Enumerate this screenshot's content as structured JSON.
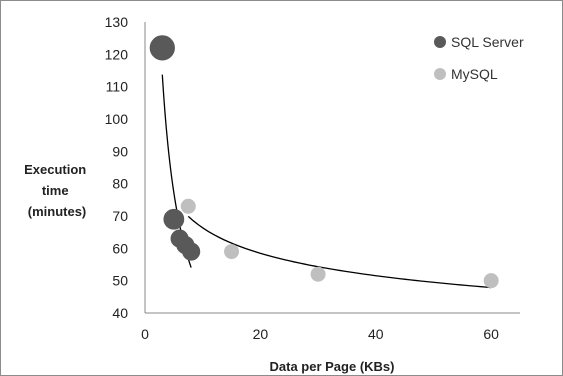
{
  "chart_data": {
    "type": "scatter",
    "title": "",
    "xlabel": "Data per Page (KBs)",
    "ylabel": [
      "Execution",
      "time",
      "(minutes)"
    ],
    "xlim": [
      0,
      65
    ],
    "ylim": [
      40,
      130
    ],
    "xticks": [
      0,
      20,
      40,
      60
    ],
    "yticks": [
      40,
      50,
      60,
      70,
      80,
      90,
      100,
      110,
      120,
      130
    ],
    "grid": false,
    "legend_position": "top-right",
    "series": [
      {
        "name": "SQL Server",
        "color": "#595959",
        "points": [
          {
            "x": 3,
            "y": 122,
            "size": 3
          },
          {
            "x": 5,
            "y": 69,
            "size": 2
          },
          {
            "x": 6,
            "y": 63,
            "size": 1.5
          },
          {
            "x": 7,
            "y": 61,
            "size": 1.5
          },
          {
            "x": 8,
            "y": 59,
            "size": 1.5
          }
        ],
        "trendline": {
          "type": "power",
          "x_start": 3,
          "x_end": 8
        }
      },
      {
        "name": "MySQL",
        "color": "#bfbfbf",
        "points": [
          {
            "x": 7.5,
            "y": 73,
            "size": 1
          },
          {
            "x": 15,
            "y": 59,
            "size": 1
          },
          {
            "x": 30,
            "y": 52,
            "size": 1
          },
          {
            "x": 60,
            "y": 50,
            "size": 1
          }
        ],
        "trendline": {
          "type": "power",
          "x_start": 7.5,
          "x_end": 60
        }
      }
    ]
  }
}
